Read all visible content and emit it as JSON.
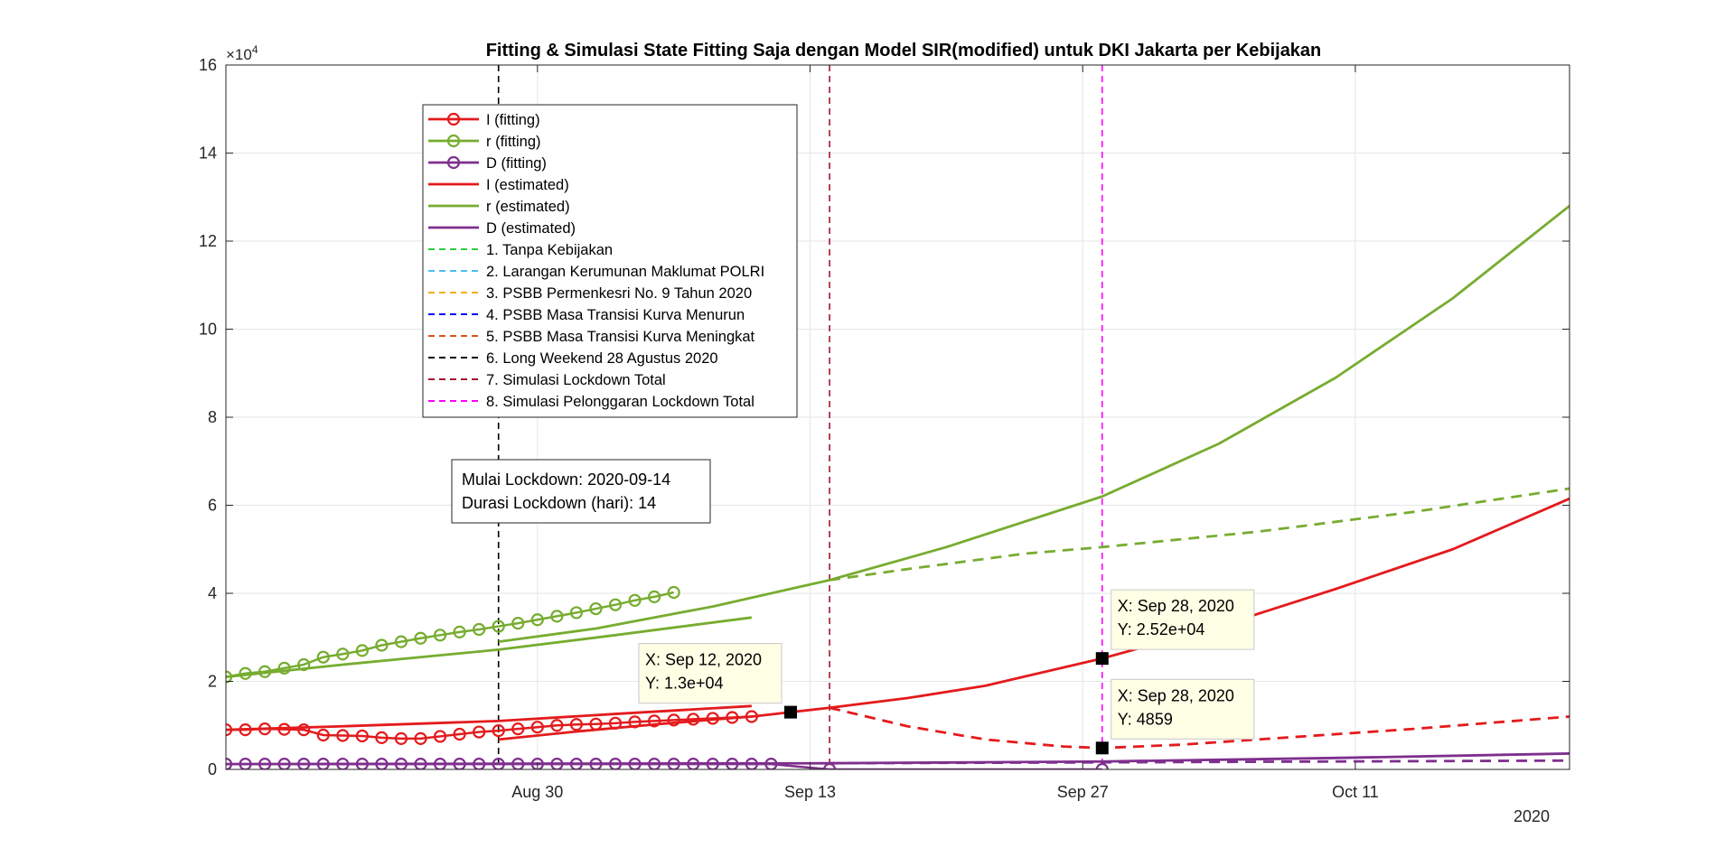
{
  "chart_data": {
    "type": "line",
    "title": "Fitting & Simulasi State Fitting Saja dengan Model SIR(modified) untuk DKI Jakarta per Kebijakan",
    "xlabel": "",
    "ylabel": "",
    "y_multiplier_label": "×10",
    "y_multiplier_exp": "4",
    "x_year_label": "2020",
    "xlim": [
      "2020-08-14",
      "2020-10-22"
    ],
    "ylim": [
      0,
      16
    ],
    "y_unit": "×10^4",
    "yticks": [
      0,
      2,
      4,
      6,
      8,
      10,
      12,
      14,
      16
    ],
    "xticks": [
      {
        "date": "2020-08-30",
        "label": "Aug 30"
      },
      {
        "date": "2020-09-13",
        "label": "Sep 13"
      },
      {
        "date": "2020-09-27",
        "label": "Sep 27"
      },
      {
        "date": "2020-10-11",
        "label": "Oct 11"
      }
    ],
    "grid": true,
    "legend_position": "upper-left",
    "colors": {
      "I": "#e41a1c",
      "r": "#77ac30",
      "D": "#7e2f8e",
      "kebijakan_1": "#2ecc40",
      "kebijakan_2": "#4dbeee",
      "kebijakan_3": "#edb120",
      "kebijakan_4": "#0000ff",
      "kebijakan_5": "#d95319",
      "kebijakan_6": "#000000",
      "kebijakan_7": "#a2142f",
      "kebijakan_8": "#ff00ff"
    },
    "legend": [
      {
        "label": "I (fitting)",
        "color": "#e41a1c",
        "style": "marker"
      },
      {
        "label": "r (fitting)",
        "color": "#77ac30",
        "style": "marker"
      },
      {
        "label": "D (fitting)",
        "color": "#7e2f8e",
        "style": "marker"
      },
      {
        "label": "I (estimated)",
        "color": "#e41a1c",
        "style": "solid"
      },
      {
        "label": "r (estimated)",
        "color": "#77ac30",
        "style": "solid"
      },
      {
        "label": "D (estimated)",
        "color": "#7e2f8e",
        "style": "solid"
      },
      {
        "label": "1. Tanpa Kebijakan",
        "color": "#2ecc40",
        "style": "dashed"
      },
      {
        "label": "2. Larangan Kerumunan Maklumat POLRI",
        "color": "#4dbeee",
        "style": "dashed"
      },
      {
        "label": "3. PSBB Permenkesri No. 9 Tahun 2020",
        "color": "#edb120",
        "style": "dashed"
      },
      {
        "label": "4. PSBB Masa Transisi Kurva Menurun",
        "color": "#0000ff",
        "style": "dashed"
      },
      {
        "label": "5. PSBB Masa Transisi Kurva Meningkat",
        "color": "#d95319",
        "style": "dashed"
      },
      {
        "label": "6. Long Weekend 28 Agustus 2020",
        "color": "#000000",
        "style": "dashed"
      },
      {
        "label": "7. Simulasi Lockdown Total",
        "color": "#a2142f",
        "style": "dashed"
      },
      {
        "label": "8. Simulasi Pelonggaran Lockdown Total",
        "color": "#ff00ff",
        "style": "dashed"
      }
    ],
    "policy_lines": [
      {
        "date": "2020-08-28",
        "color": "#000000"
      },
      {
        "date": "2020-09-14",
        "color": "#a2142f"
      },
      {
        "date": "2020-09-28",
        "color": "#ff00ff"
      }
    ],
    "series": [
      {
        "name": "I (fitting)",
        "color": "#e41a1c",
        "style": "marker",
        "points": [
          [
            "2020-08-14",
            0.9
          ],
          [
            "2020-08-15",
            0.9
          ],
          [
            "2020-08-16",
            0.92
          ],
          [
            "2020-08-17",
            0.91
          ],
          [
            "2020-08-18",
            0.9
          ],
          [
            "2020-08-19",
            0.78
          ],
          [
            "2020-08-20",
            0.77
          ],
          [
            "2020-08-21",
            0.76
          ],
          [
            "2020-08-22",
            0.72
          ],
          [
            "2020-08-23",
            0.7
          ],
          [
            "2020-08-24",
            0.7
          ],
          [
            "2020-08-25",
            0.75
          ],
          [
            "2020-08-26",
            0.8
          ],
          [
            "2020-08-27",
            0.85
          ],
          [
            "2020-08-28",
            0.88
          ],
          [
            "2020-08-29",
            0.92
          ],
          [
            "2020-08-30",
            0.96
          ],
          [
            "2020-08-31",
            1.0
          ],
          [
            "2020-09-01",
            1.02
          ],
          [
            "2020-09-02",
            1.03
          ],
          [
            "2020-09-03",
            1.05
          ],
          [
            "2020-09-04",
            1.08
          ],
          [
            "2020-09-05",
            1.1
          ],
          [
            "2020-09-06",
            1.12
          ],
          [
            "2020-09-07",
            1.14
          ],
          [
            "2020-09-08",
            1.16
          ],
          [
            "2020-09-09",
            1.18
          ],
          [
            "2020-09-10",
            1.2
          ]
        ]
      },
      {
        "name": "r (fitting)",
        "color": "#77ac30",
        "style": "marker",
        "points": [
          [
            "2020-08-14",
            2.1
          ],
          [
            "2020-08-15",
            2.18
          ],
          [
            "2020-08-16",
            2.22
          ],
          [
            "2020-08-17",
            2.3
          ],
          [
            "2020-08-18",
            2.38
          ],
          [
            "2020-08-19",
            2.55
          ],
          [
            "2020-08-20",
            2.62
          ],
          [
            "2020-08-21",
            2.7
          ],
          [
            "2020-08-22",
            2.82
          ],
          [
            "2020-08-23",
            2.9
          ],
          [
            "2020-08-24",
            2.98
          ],
          [
            "2020-08-25",
            3.05
          ],
          [
            "2020-08-26",
            3.12
          ],
          [
            "2020-08-27",
            3.18
          ],
          [
            "2020-08-28",
            3.25
          ],
          [
            "2020-08-29",
            3.32
          ],
          [
            "2020-08-30",
            3.4
          ],
          [
            "2020-08-31",
            3.48
          ],
          [
            "2020-09-01",
            3.56
          ],
          [
            "2020-09-02",
            3.65
          ],
          [
            "2020-09-03",
            3.74
          ],
          [
            "2020-09-04",
            3.84
          ],
          [
            "2020-09-05",
            3.92
          ],
          [
            "2020-09-06",
            4.02
          ]
        ]
      },
      {
        "name": "D (fitting)",
        "color": "#7e2f8e",
        "style": "marker",
        "points": [
          [
            "2020-08-14",
            0.12
          ],
          [
            "2020-08-15",
            0.12
          ],
          [
            "2020-08-16",
            0.12
          ],
          [
            "2020-08-17",
            0.12
          ],
          [
            "2020-08-18",
            0.12
          ],
          [
            "2020-08-19",
            0.12
          ],
          [
            "2020-08-20",
            0.12
          ],
          [
            "2020-08-21",
            0.12
          ],
          [
            "2020-08-22",
            0.12
          ],
          [
            "2020-08-23",
            0.12
          ],
          [
            "2020-08-24",
            0.12
          ],
          [
            "2020-08-25",
            0.12
          ],
          [
            "2020-08-26",
            0.12
          ],
          [
            "2020-08-27",
            0.12
          ],
          [
            "2020-08-28",
            0.12
          ],
          [
            "2020-08-29",
            0.12
          ],
          [
            "2020-08-30",
            0.12
          ],
          [
            "2020-08-31",
            0.12
          ],
          [
            "2020-09-01",
            0.12
          ],
          [
            "2020-09-02",
            0.12
          ],
          [
            "2020-09-03",
            0.12
          ],
          [
            "2020-09-04",
            0.12
          ],
          [
            "2020-09-05",
            0.12
          ],
          [
            "2020-09-06",
            0.12
          ],
          [
            "2020-09-07",
            0.12
          ],
          [
            "2020-09-08",
            0.12
          ],
          [
            "2020-09-09",
            0.12
          ],
          [
            "2020-09-10",
            0.12
          ],
          [
            "2020-09-11",
            0.12
          ],
          [
            "2020-09-14",
            0.0
          ],
          [
            "2020-09-28",
            0.0
          ]
        ]
      },
      {
        "name": "I (estimated)",
        "color": "#e41a1c",
        "style": "solid",
        "points": [
          [
            "2020-08-14",
            0.9
          ],
          [
            "2020-08-20",
            0.98
          ],
          [
            "2020-08-28",
            1.1
          ],
          [
            "2020-09-03",
            1.26
          ],
          [
            "2020-09-10",
            1.44
          ]
        ]
      },
      {
        "name": "I (estimated)",
        "color": "#e41a1c",
        "style": "solid",
        "points": [
          [
            "2020-08-28",
            0.68
          ],
          [
            "2020-09-01",
            0.86
          ],
          [
            "2020-09-05",
            1.02
          ],
          [
            "2020-09-08",
            1.13
          ],
          [
            "2020-09-10",
            1.2
          ],
          [
            "2020-09-12",
            1.3
          ],
          [
            "2020-09-14",
            1.4
          ],
          [
            "2020-09-18",
            1.62
          ],
          [
            "2020-09-22",
            1.9
          ],
          [
            "2020-09-28",
            2.52
          ],
          [
            "2020-10-04",
            3.25
          ],
          [
            "2020-10-10",
            4.1
          ],
          [
            "2020-10-16",
            5.0
          ],
          [
            "2020-10-22",
            6.15
          ]
        ]
      },
      {
        "name": "r (estimated)",
        "color": "#77ac30",
        "style": "solid",
        "points": [
          [
            "2020-08-14",
            2.1
          ],
          [
            "2020-08-20",
            2.38
          ],
          [
            "2020-08-28",
            2.72
          ],
          [
            "2020-09-03",
            3.05
          ],
          [
            "2020-09-10",
            3.45
          ]
        ]
      },
      {
        "name": "r (estimated)",
        "color": "#77ac30",
        "style": "solid",
        "points": [
          [
            "2020-08-28",
            2.9
          ],
          [
            "2020-09-02",
            3.2
          ],
          [
            "2020-09-08",
            3.7
          ],
          [
            "2020-09-14",
            4.3
          ],
          [
            "2020-09-20",
            5.05
          ],
          [
            "2020-09-28",
            6.2
          ],
          [
            "2020-10-04",
            7.4
          ],
          [
            "2020-10-10",
            8.9
          ],
          [
            "2020-10-16",
            10.7
          ],
          [
            "2020-10-22",
            12.8
          ]
        ]
      },
      {
        "name": "D (estimated)",
        "color": "#7e2f8e",
        "style": "solid",
        "points": [
          [
            "2020-08-14",
            0.12
          ],
          [
            "2020-09-14",
            0.14
          ],
          [
            "2020-09-28",
            0.18
          ],
          [
            "2020-10-10",
            0.26
          ],
          [
            "2020-10-22",
            0.36
          ]
        ]
      },
      {
        "name": "I (estimated)",
        "color": "#e41a1c",
        "style": "dashed",
        "points": [
          [
            "2020-09-14",
            1.4
          ],
          [
            "2020-09-18",
            0.98
          ],
          [
            "2020-09-22",
            0.68
          ],
          [
            "2020-09-26",
            0.52
          ],
          [
            "2020-09-28",
            0.486
          ],
          [
            "2020-10-02",
            0.56
          ],
          [
            "2020-10-08",
            0.74
          ],
          [
            "2020-10-14",
            0.92
          ],
          [
            "2020-10-22",
            1.2
          ]
        ]
      },
      {
        "name": "r (estimated)",
        "color": "#77ac30",
        "style": "dashed",
        "points": [
          [
            "2020-09-14",
            4.3
          ],
          [
            "2020-09-18",
            4.55
          ],
          [
            "2020-09-24",
            4.9
          ],
          [
            "2020-09-28",
            5.05
          ],
          [
            "2020-10-06",
            5.4
          ],
          [
            "2020-10-14",
            5.85
          ],
          [
            "2020-10-22",
            6.38
          ]
        ]
      },
      {
        "name": "D (estimated)",
        "color": "#7e2f8e",
        "style": "dashed",
        "points": [
          [
            "2020-09-14",
            0.14
          ],
          [
            "2020-09-28",
            0.16
          ],
          [
            "2020-10-10",
            0.18
          ],
          [
            "2020-10-22",
            0.2
          ]
        ]
      }
    ],
    "datatips": [
      {
        "date": "2020-09-12",
        "y": 1.3,
        "line1": "X: Sep 12, 2020",
        "line2": "Y: 1.3e+04",
        "box_anchor": "upper-left"
      },
      {
        "date": "2020-09-28",
        "y": 2.52,
        "line1": "X: Sep 28, 2020",
        "line2": "Y: 2.52e+04",
        "box_anchor": "upper-right"
      },
      {
        "date": "2020-09-28",
        "y": 0.4859,
        "line1": "X: Sep 28, 2020",
        "line2": "Y: 4859",
        "box_anchor": "upper-right"
      }
    ],
    "annotation": {
      "line1": "Mulai Lockdown: 2020-09-14",
      "line2": "Durasi Lockdown (hari): 14"
    }
  }
}
